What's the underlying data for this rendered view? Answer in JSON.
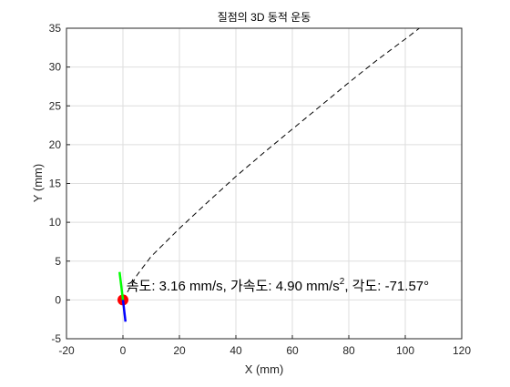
{
  "figure": {
    "background": "#ffffff"
  },
  "chart_data": {
    "type": "line",
    "title": "질점의 3D 동적 운동",
    "xlabel": "X (mm)",
    "ylabel": "Y (mm)",
    "xlim": [
      -20,
      120
    ],
    "ylim": [
      -5,
      35
    ],
    "x_ticks": [
      -20,
      0,
      20,
      40,
      60,
      80,
      100,
      120
    ],
    "y_ticks": [
      -5,
      0,
      5,
      10,
      15,
      20,
      25,
      30,
      35
    ],
    "x_tick_labels": [
      "-20",
      "0",
      "20",
      "40",
      "60",
      "80",
      "100",
      "120"
    ],
    "y_tick_labels": [
      "-5",
      "0",
      "5",
      "10",
      "15",
      "20",
      "25",
      "30",
      "35"
    ],
    "grid": true,
    "series": [
      {
        "style": "dashed",
        "color": "#000000",
        "x": [
          0,
          5,
          10,
          20,
          30,
          40,
          50,
          60,
          70,
          80,
          90,
          100,
          105
        ],
        "y": [
          0,
          3.2,
          5.6,
          9.2,
          12.6,
          15.9,
          19.0,
          22.0,
          25.0,
          28.0,
          30.9,
          33.6,
          35
        ]
      }
    ],
    "particle": {
      "x": 0,
      "y": 0,
      "color": "#ff0000"
    },
    "velocity_vector": {
      "color": "#00ff00",
      "dx": -1.2,
      "dy": 3.6
    },
    "acceleration_vector": {
      "color": "#0000ff",
      "dx": 0.9,
      "dy": -2.8
    },
    "annotation": {
      "x": 1.2,
      "y": 1.2,
      "text_before_sup": "속도: 3.16 mm/s, 가속도: 4.90 mm/s",
      "sup": "2",
      "text_after_sup": ", 각도: -71.57°"
    }
  }
}
